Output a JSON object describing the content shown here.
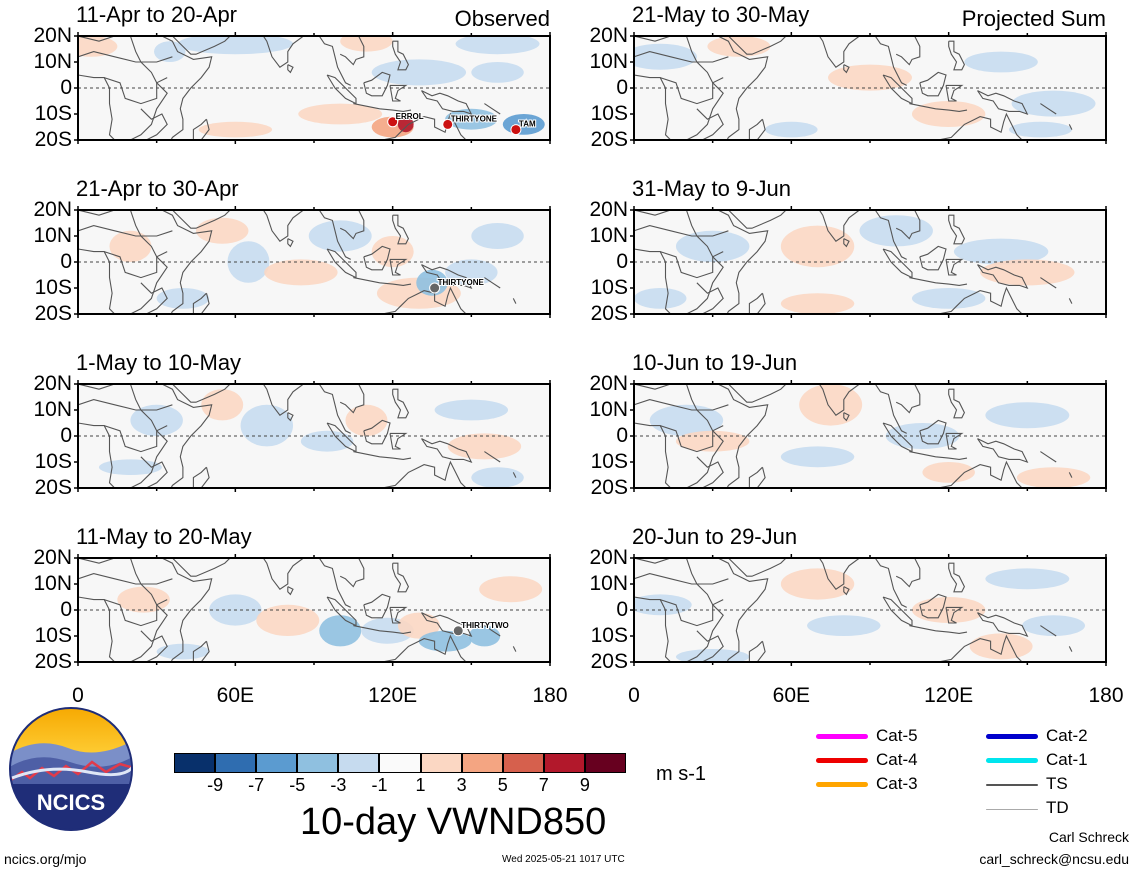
{
  "panels": [
    {
      "title": "11-Apr to 20-Apr",
      "tag": "Observed",
      "storms": [
        "ERROL",
        "THIRTYONE",
        "TAM"
      ]
    },
    {
      "title": "21-Apr to 30-Apr",
      "tag": "",
      "storms": [
        "THIRTYONE"
      ]
    },
    {
      "title": "1-May to 10-May",
      "tag": "",
      "storms": []
    },
    {
      "title": "11-May to 20-May",
      "tag": "",
      "storms": [
        "THIRTYTWO"
      ]
    },
    {
      "title": "21-May to 30-May",
      "tag": "Projected Sum",
      "storms": []
    },
    {
      "title": "31-May to 9-Jun",
      "tag": "",
      "storms": []
    },
    {
      "title": "10-Jun to 19-Jun",
      "tag": "",
      "storms": []
    },
    {
      "title": "20-Jun to 29-Jun",
      "tag": "",
      "storms": []
    }
  ],
  "lat_labels": [
    "20N",
    "10N",
    "0",
    "10S",
    "20S"
  ],
  "lon_labels": [
    "0",
    "60E",
    "120E",
    "180"
  ],
  "colorbar": {
    "colors": [
      "#08306b",
      "#2f6db0",
      "#5b9bd0",
      "#8fc0e0",
      "#c6dbef",
      "#fafafa",
      "#fbd7c3",
      "#f4a582",
      "#d6604d",
      "#b2182b",
      "#67001f"
    ],
    "labels": [
      "-9",
      "-7",
      "-5",
      "-3",
      "-1",
      "1",
      "3",
      "5",
      "7",
      "9"
    ],
    "units": "m s-1"
  },
  "variable_title": "10-day VWND850",
  "legend": [
    {
      "label": "Cat-5",
      "color": "#ff00ff"
    },
    {
      "label": "Cat-4",
      "color": "#ee0000"
    },
    {
      "label": "Cat-3",
      "color": "#ffa500"
    },
    {
      "label": "Cat-2",
      "color": "#0000cc"
    },
    {
      "label": "Cat-1",
      "color": "#00e5ee"
    },
    {
      "label": "TS",
      "color": "#555555"
    },
    {
      "label": "TD",
      "color": "#aaaaaa"
    }
  ],
  "logo_text": "NCICS",
  "footer": {
    "site": "ncics.org/mjo",
    "timestamp": "Wed 2025-05-21 1017 UTC",
    "author": "Carl Schreck",
    "email": "carl_schreck@ncsu.edu"
  }
}
